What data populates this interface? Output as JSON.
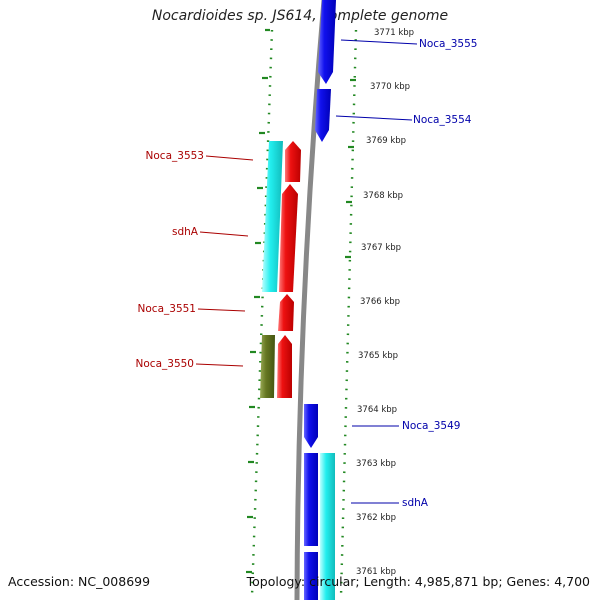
{
  "title": "Nocardioides sp. JS614, complete genome",
  "footer": {
    "accession": "Accession: NC_008699",
    "summary": "Topology: circular; Length: 4,985,871 bp; Genes: 4,700"
  },
  "ticks": [
    "3771 kbp",
    "3770 kbp",
    "3769 kbp",
    "3768 kbp",
    "3767 kbp",
    "3766 kbp",
    "3765 kbp",
    "3764 kbp",
    "3763 kbp",
    "3762 kbp",
    "3761 kbp"
  ],
  "genes_reverse": [
    "Noca_3553",
    "sdhA",
    "Noca_3551",
    "Noca_3550"
  ],
  "genes_forward": [
    "Noca_3555",
    "Noca_3554",
    "Noca_3549",
    "sdhA"
  ],
  "colors": {
    "forward_cds": "#1111ee",
    "reverse_cds": "#ee1111",
    "cyan_feature": "#22eeee",
    "olive_feature": "#667722",
    "backbone": "#888888",
    "forward_label": "#0000aa",
    "reverse_label": "#aa0000",
    "gc_dots": "#228822",
    "tick_text": "#222222"
  }
}
